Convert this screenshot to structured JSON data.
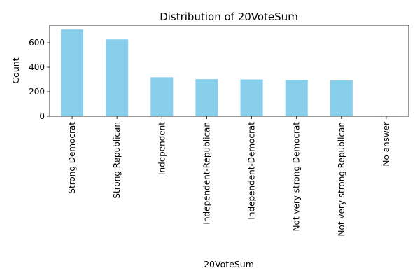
{
  "chart_data": {
    "type": "bar",
    "title": "Distribution of 20VoteSum",
    "xlabel": "20VoteSum",
    "ylabel": "Count",
    "categories": [
      "Strong Democrat",
      "Strong Republican",
      "Independent",
      "Independent-Republican",
      "Independent-Democrat",
      "Not very strong Democrat",
      "Not very strong Republican",
      "No answer"
    ],
    "values": [
      708,
      627,
      318,
      302,
      300,
      295,
      291,
      2
    ],
    "ylim": [
      0,
      743
    ],
    "yticks": [
      0,
      200,
      400,
      600
    ],
    "bar_color": "#87ceeb",
    "grid": false,
    "legend": "none"
  }
}
